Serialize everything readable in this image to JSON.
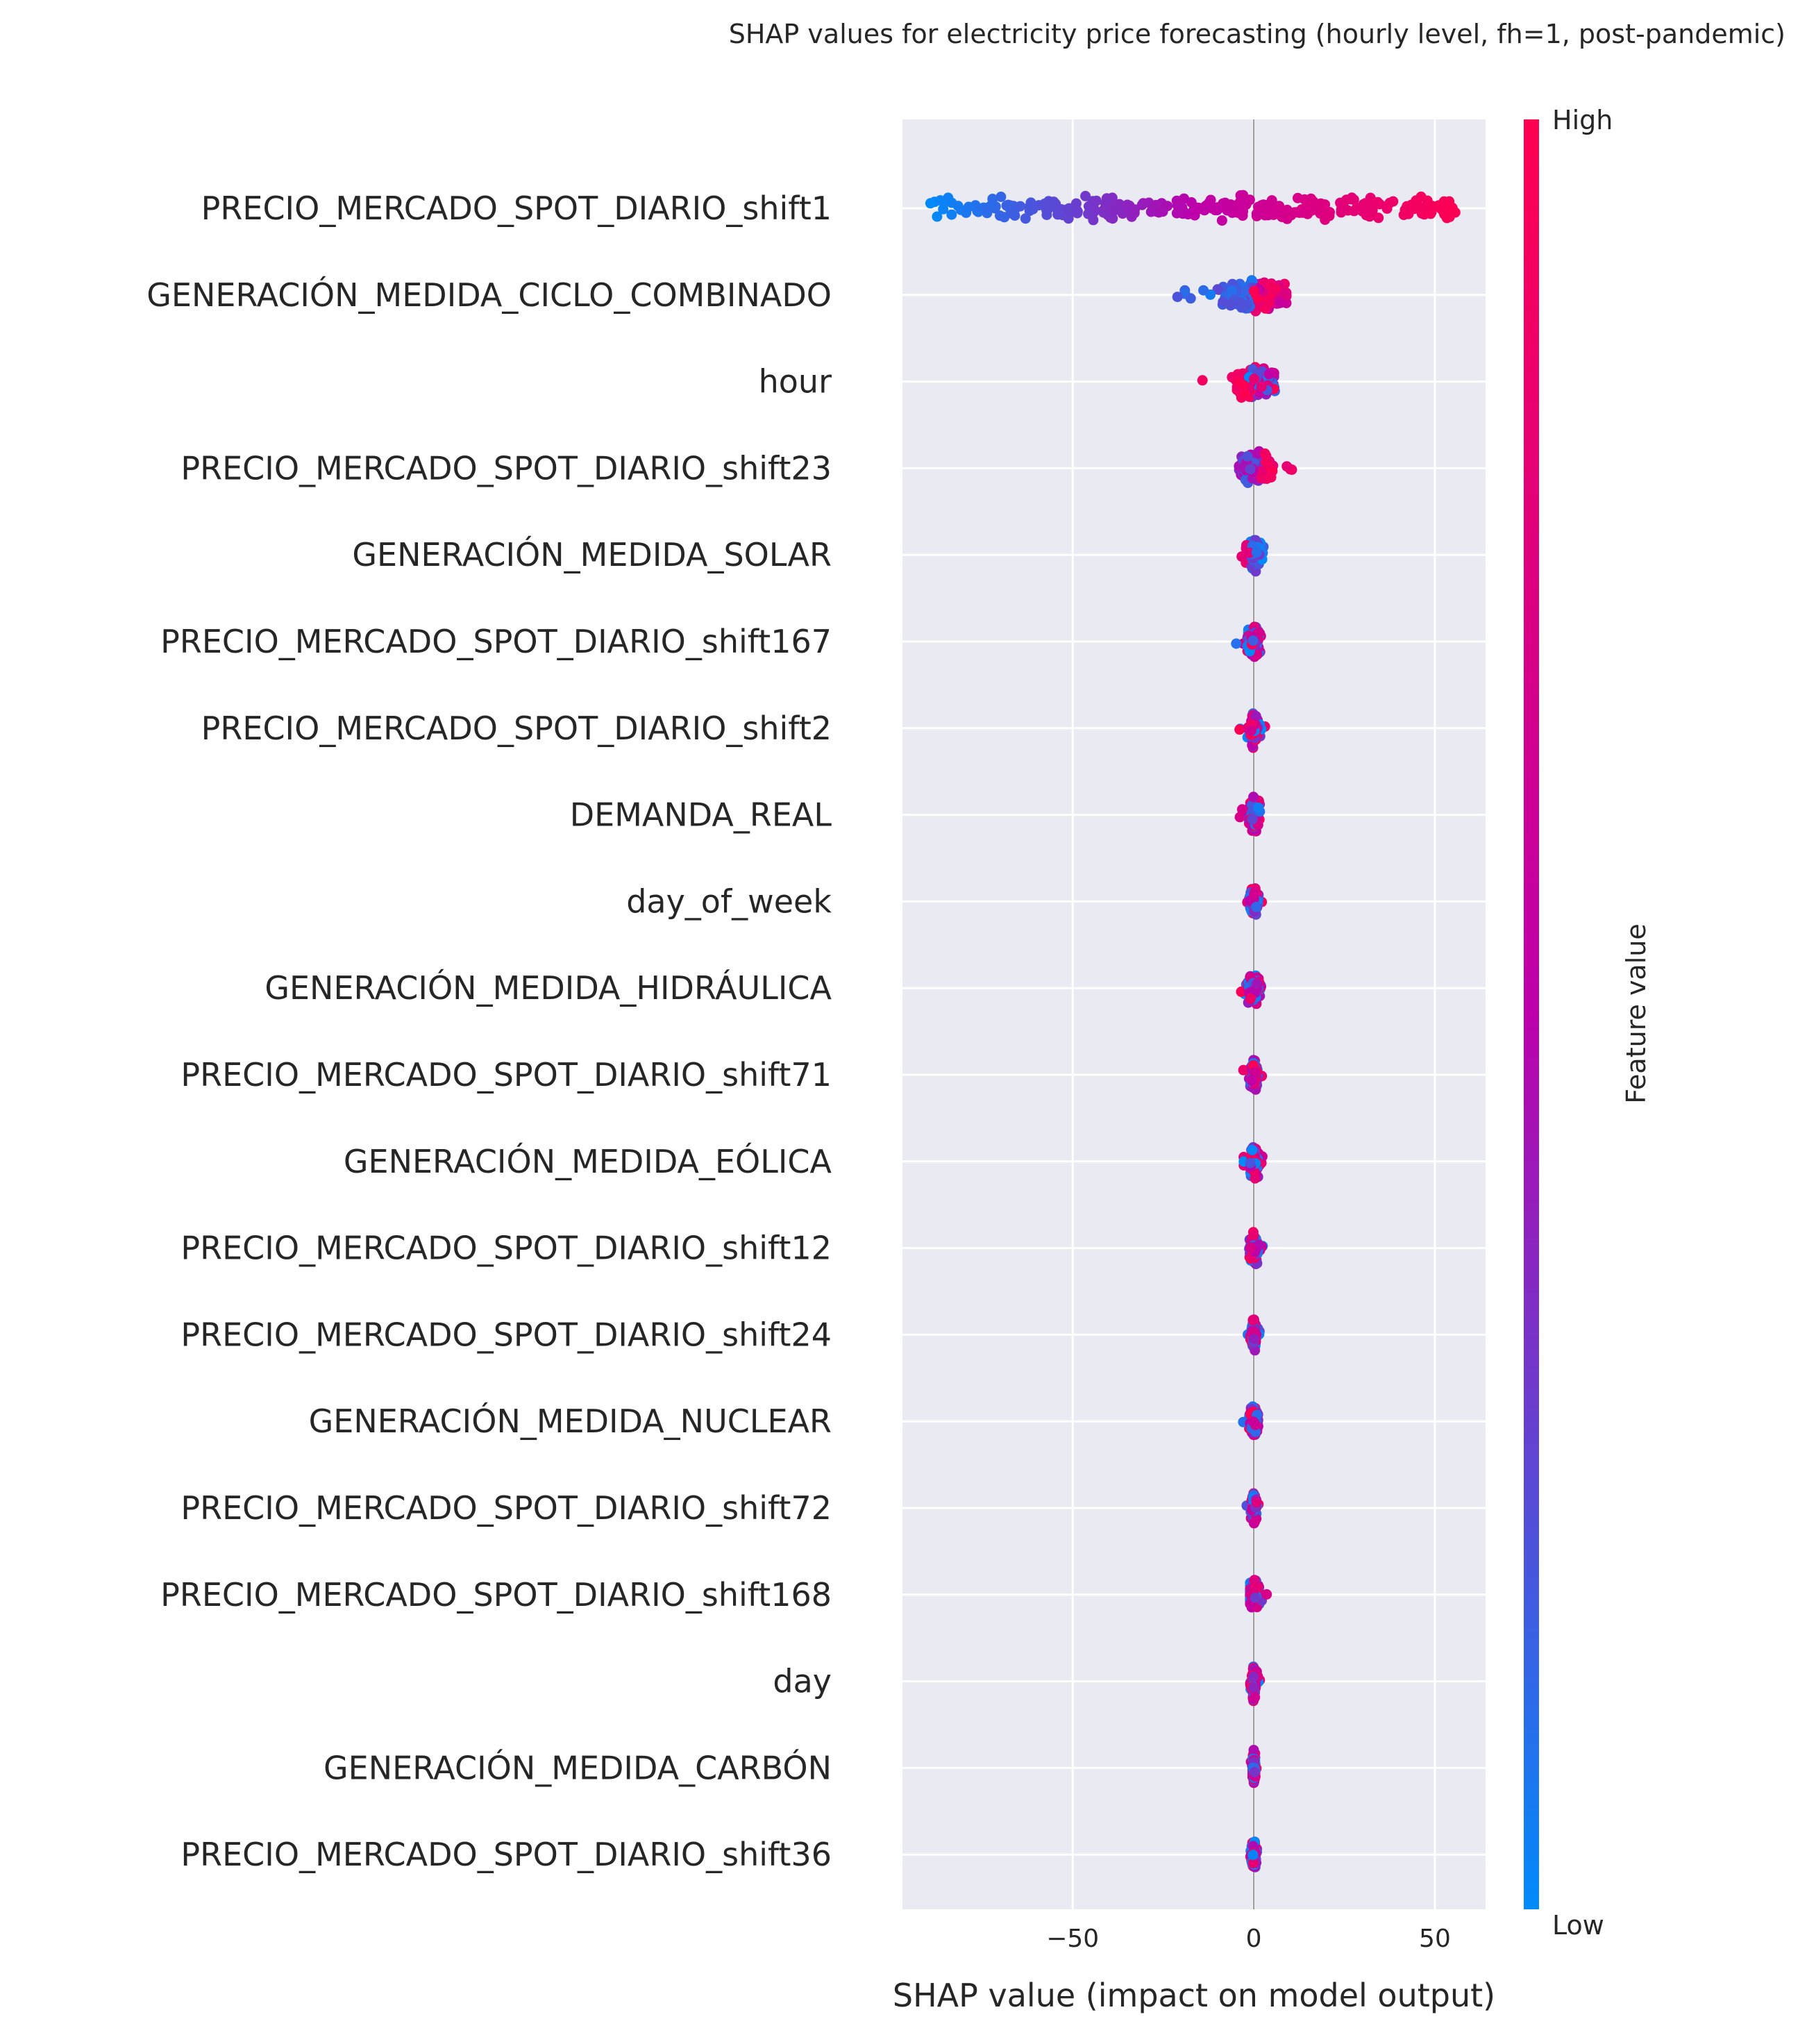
{
  "chart_data": {
    "type": "scatter",
    "title": "SHAP values for electricity price forecasting (hourly level, fh=1, post-pandemic)",
    "xlabel": "SHAP value (impact on model output)",
    "ylabel": "",
    "xlim": [
      -97,
      64
    ],
    "x_ticks": [
      -50,
      0,
      50
    ],
    "x_tick_labels": [
      "−50",
      "0",
      "50"
    ],
    "grid": true,
    "features": [
      {
        "name": "PRECIO_MERCADO_SPOT_DIARIO_shift1",
        "min": -90,
        "max": 57
      },
      {
        "name": "GENERACIÓN_MEDIDA_CICLO_COMBINADO",
        "min": -25,
        "max": 9
      },
      {
        "name": "hour",
        "min": -15,
        "max": 7
      },
      {
        "name": "PRECIO_MERCADO_SPOT_DIARIO_shift23",
        "min": -8,
        "max": 11
      },
      {
        "name": "GENERACIÓN_MEDIDA_SOLAR",
        "min": -5,
        "max": 3
      },
      {
        "name": "PRECIO_MERCADO_SPOT_DIARIO_shift167",
        "min": -5,
        "max": 4
      },
      {
        "name": "PRECIO_MERCADO_SPOT_DIARIO_shift2",
        "min": -4,
        "max": 4
      },
      {
        "name": "DEMANDA_REAL",
        "min": -4,
        "max": 3
      },
      {
        "name": "day_of_week",
        "min": -3,
        "max": 3
      },
      {
        "name": "GENERACIÓN_MEDIDA_HIDRÁULICA",
        "min": -5,
        "max": 2
      },
      {
        "name": "PRECIO_MERCADO_SPOT_DIARIO_shift71",
        "min": -3,
        "max": 3
      },
      {
        "name": "GENERACIÓN_MEDIDA_EÓLICA",
        "min": -3,
        "max": 3
      },
      {
        "name": "PRECIO_MERCADO_SPOT_DIARIO_shift12",
        "min": -2,
        "max": 3
      },
      {
        "name": "PRECIO_MERCADO_SPOT_DIARIO_shift24",
        "min": -2,
        "max": 2
      },
      {
        "name": "GENERACIÓN_MEDIDA_NUCLEAR",
        "min": -3,
        "max": 2
      },
      {
        "name": "PRECIO_MERCADO_SPOT_DIARIO_shift72",
        "min": -2,
        "max": 2
      },
      {
        "name": "PRECIO_MERCADO_SPOT_DIARIO_shift168",
        "min": -1,
        "max": 5
      },
      {
        "name": "day",
        "min": -1,
        "max": 2
      },
      {
        "name": "GENERACIÓN_MEDIDA_CARBÓN",
        "min": -1,
        "max": 1
      },
      {
        "name": "PRECIO_MERCADO_SPOT_DIARIO_shift36",
        "min": -1,
        "max": 2
      }
    ],
    "colorbar": {
      "label": "Feature value",
      "high_label": "High",
      "low_label": "Low",
      "high_color": "#ff0051",
      "mid_color": "#bd00ab",
      "low_color": "#008bfb"
    }
  }
}
